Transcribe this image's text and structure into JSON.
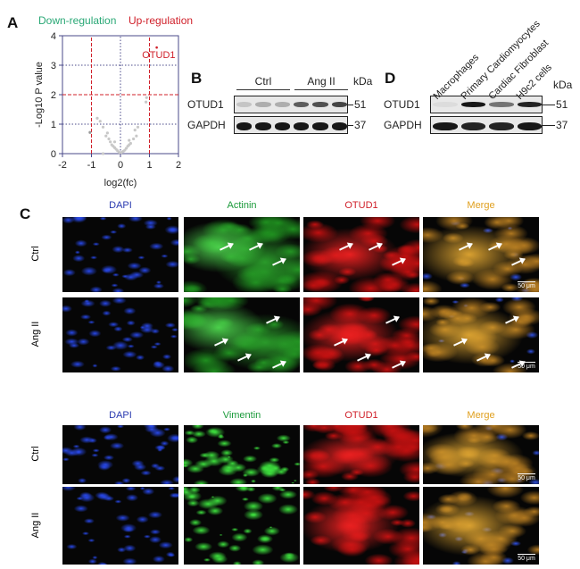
{
  "panels": {
    "a": "A",
    "b": "B",
    "c": "C",
    "d": "D"
  },
  "chart_data": {
    "type": "scatter",
    "legend": [
      {
        "label": "Down-regulation",
        "color": "#2aa876"
      },
      {
        "label": "Up-regulation",
        "color": "#d0202a"
      }
    ],
    "xlabel": "log2(fc)",
    "ylabel": "-Log10 P value",
    "xlim": [
      -2,
      2
    ],
    "ylim": [
      0,
      4
    ],
    "xticks": [
      "-2",
      "-1",
      "0",
      "1",
      "2"
    ],
    "yticks": [
      "0",
      "1",
      "2",
      "3",
      "4"
    ],
    "thresholds": {
      "x": [
        -1,
        1
      ],
      "y": 2
    },
    "annotation": "OTUD1",
    "points": [
      [
        1.25,
        3.6
      ],
      [
        0.9,
        1.9
      ],
      [
        0.88,
        1.75
      ],
      [
        -1.05,
        0.72
      ],
      [
        -0.8,
        1.2
      ],
      [
        -0.7,
        1.1
      ],
      [
        -0.6,
        0.9
      ],
      [
        -0.5,
        0.6
      ],
      [
        -0.4,
        0.5
      ],
      [
        -0.35,
        0.4
      ],
      [
        -0.3,
        0.3
      ],
      [
        -0.25,
        0.25
      ],
      [
        -0.2,
        0.2
      ],
      [
        -0.15,
        0.15
      ],
      [
        -0.1,
        0.1
      ],
      [
        -0.05,
        0.05
      ],
      [
        0,
        0.02
      ],
      [
        0.05,
        0.05
      ],
      [
        0.1,
        0.08
      ],
      [
        0.15,
        0.12
      ],
      [
        0.2,
        0.18
      ],
      [
        0.25,
        0.25
      ],
      [
        0.3,
        0.3
      ],
      [
        0.35,
        0.35
      ],
      [
        0.45,
        0.5
      ],
      [
        0.55,
        0.6
      ],
      [
        0.6,
        0.9
      ],
      [
        0.5,
        0.8
      ],
      [
        -0.45,
        0.7
      ],
      [
        -0.6,
        0.0
      ],
      [
        0.3,
        0.45
      ],
      [
        -0.2,
        0.4
      ]
    ],
    "highlight_color": "#d0202a",
    "point_color": "#c8c8c8"
  },
  "b": {
    "groups": [
      "Ctrl",
      "Ang II"
    ],
    "kda": "kDa",
    "rows": [
      {
        "label": "OTUD1",
        "mw": "51",
        "bands": [
          0.15,
          0.25,
          0.25,
          0.6,
          0.65,
          0.7
        ]
      },
      {
        "label": "GAPDH",
        "mw": "37",
        "bands": [
          0.9,
          0.9,
          0.9,
          0.9,
          0.9,
          0.9
        ]
      }
    ]
  },
  "d": {
    "lanes": [
      "Macrophages",
      "Primary Cardiomyocytes",
      "Cardiac Fibroblast",
      "H9c2 cells"
    ],
    "kda": "kDa",
    "rows": [
      {
        "label": "OTUD1",
        "mw": "51",
        "bands": [
          0.05,
          0.9,
          0.5,
          0.85
        ]
      },
      {
        "label": "GAPDH",
        "mw": "37",
        "bands": [
          0.9,
          0.85,
          0.85,
          0.9
        ]
      }
    ]
  },
  "c": {
    "groups": [
      {
        "headers": [
          {
            "t": "DAPI",
            "c": "#2a3ab0"
          },
          {
            "t": "Actinin",
            "c": "#1a9a3a"
          },
          {
            "t": "OTUD1",
            "c": "#d0202a"
          },
          {
            "t": "Merge",
            "c": "#e0a020"
          }
        ],
        "rows": [
          "Ctrl",
          "Ang II"
        ]
      },
      {
        "headers": [
          {
            "t": "DAPI",
            "c": "#2a3ab0"
          },
          {
            "t": "Vimentin",
            "c": "#1a9a3a"
          },
          {
            "t": "OTUD1",
            "c": "#d0202a"
          },
          {
            "t": "Merge",
            "c": "#e0a020"
          }
        ],
        "rows": [
          "Ctrl",
          "Ang II"
        ]
      }
    ],
    "scale_bar": "50 μm"
  }
}
